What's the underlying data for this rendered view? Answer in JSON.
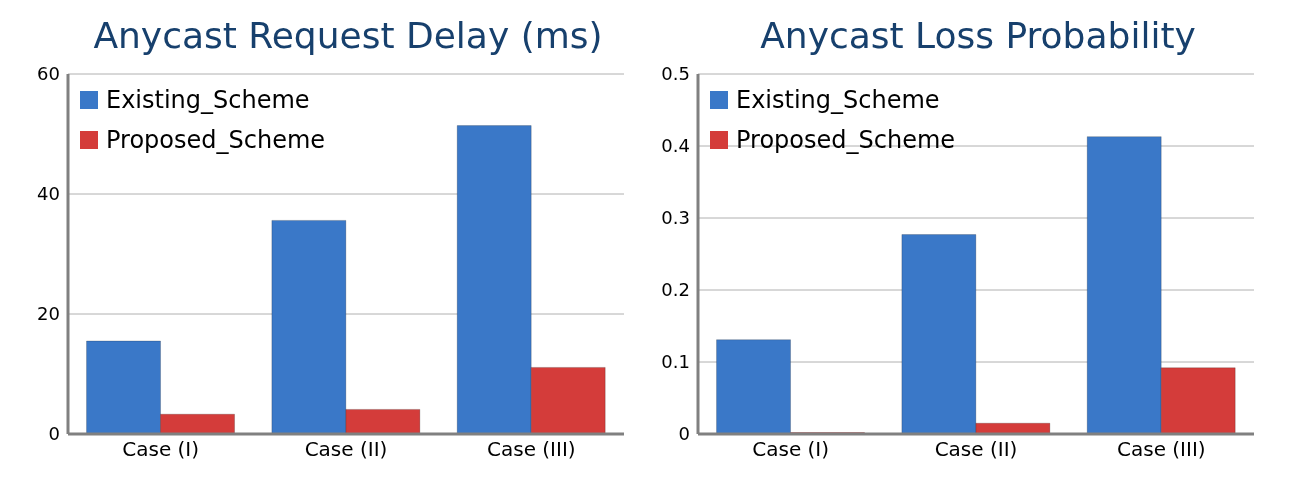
{
  "chart_data": [
    {
      "type": "bar",
      "title": "Anycast Request Delay (ms)",
      "categories": [
        "Case (I)",
        "Case (II)",
        "Case (III)"
      ],
      "series": [
        {
          "name": "Existing_Scheme",
          "color": "#3a78c8",
          "values": [
            15.5,
            35.6,
            51.4
          ]
        },
        {
          "name": "Proposed_Scheme",
          "color": "#d43c3a",
          "values": [
            3.3,
            4.1,
            11.1
          ]
        }
      ],
      "ylim": [
        0,
        60
      ],
      "yticks": [
        0,
        20,
        40,
        60
      ],
      "grid": "y",
      "legend": "top left"
    },
    {
      "type": "bar",
      "title": "Anycast Loss Probability",
      "categories": [
        "Case (I)",
        "Case (II)",
        "Case (III)"
      ],
      "series": [
        {
          "name": "Existing_Scheme",
          "color": "#3a78c8",
          "values": [
            0.131,
            0.277,
            0.413
          ]
        },
        {
          "name": "Proposed_Scheme",
          "color": "#d43c3a",
          "values": [
            0.002,
            0.015,
            0.092
          ]
        }
      ],
      "ylim": [
        0,
        0.5
      ],
      "yticks": [
        0,
        0.1,
        0.2,
        0.3,
        0.4,
        0.5
      ],
      "grid": "y",
      "legend": "top left"
    }
  ]
}
